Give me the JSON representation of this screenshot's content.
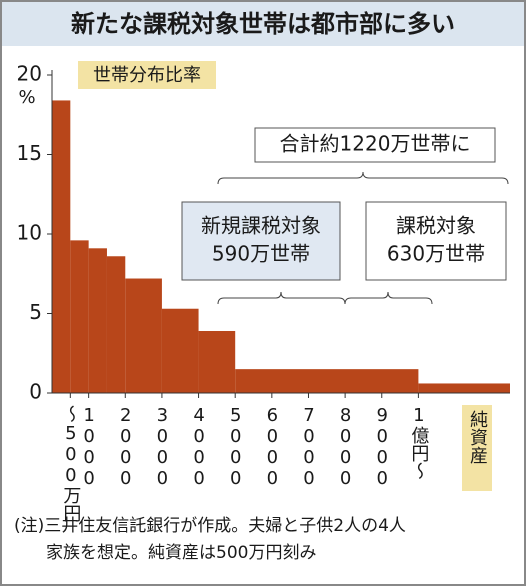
{
  "chart_data": {
    "type": "histogram",
    "title": "新たな課税対象世帯は都市部に多い",
    "y_label": "世帯分布比率",
    "y_unit": "%",
    "x_label": "純資産",
    "bins": [
      0,
      500,
      1000,
      1500,
      2000,
      3000,
      4000,
      5000,
      10000,
      12500
    ],
    "values": [
      18.4,
      9.6,
      9.1,
      8.6,
      7.2,
      5.3,
      3.9,
      1.5,
      0.6
    ],
    "color": "#b8461a",
    "xlim": [
      0,
      12500
    ],
    "xticks": [
      {
        "value": 500,
        "label": "〜500万円"
      },
      {
        "value": 1000,
        "label": "1000"
      },
      {
        "value": 2000,
        "label": "2000"
      },
      {
        "value": 3000,
        "label": "3000"
      },
      {
        "value": 4000,
        "label": "4000"
      },
      {
        "value": 5000,
        "label": "5000"
      },
      {
        "value": 6000,
        "label": "6000"
      },
      {
        "value": 7000,
        "label": "7000"
      },
      {
        "value": 8000,
        "label": "8000"
      },
      {
        "value": 9000,
        "label": "9000"
      },
      {
        "value": 10000,
        "label": "1億円〜"
      }
    ],
    "ylim": [
      0,
      20
    ],
    "yticks": [
      0,
      5,
      10,
      15,
      20
    ],
    "annotations": [
      {
        "lines": [
          "合計約1220万世帯に"
        ]
      },
      {
        "lines": [
          "新規課税対象",
          "590万世帯"
        ]
      },
      {
        "lines": [
          "課税対象",
          "630万世帯"
        ]
      }
    ],
    "note": [
      "(注)三井住友信託銀行が作成。夫婦と子供2人の4人",
      "家族を想定。純資産は500万円刻み"
    ]
  }
}
